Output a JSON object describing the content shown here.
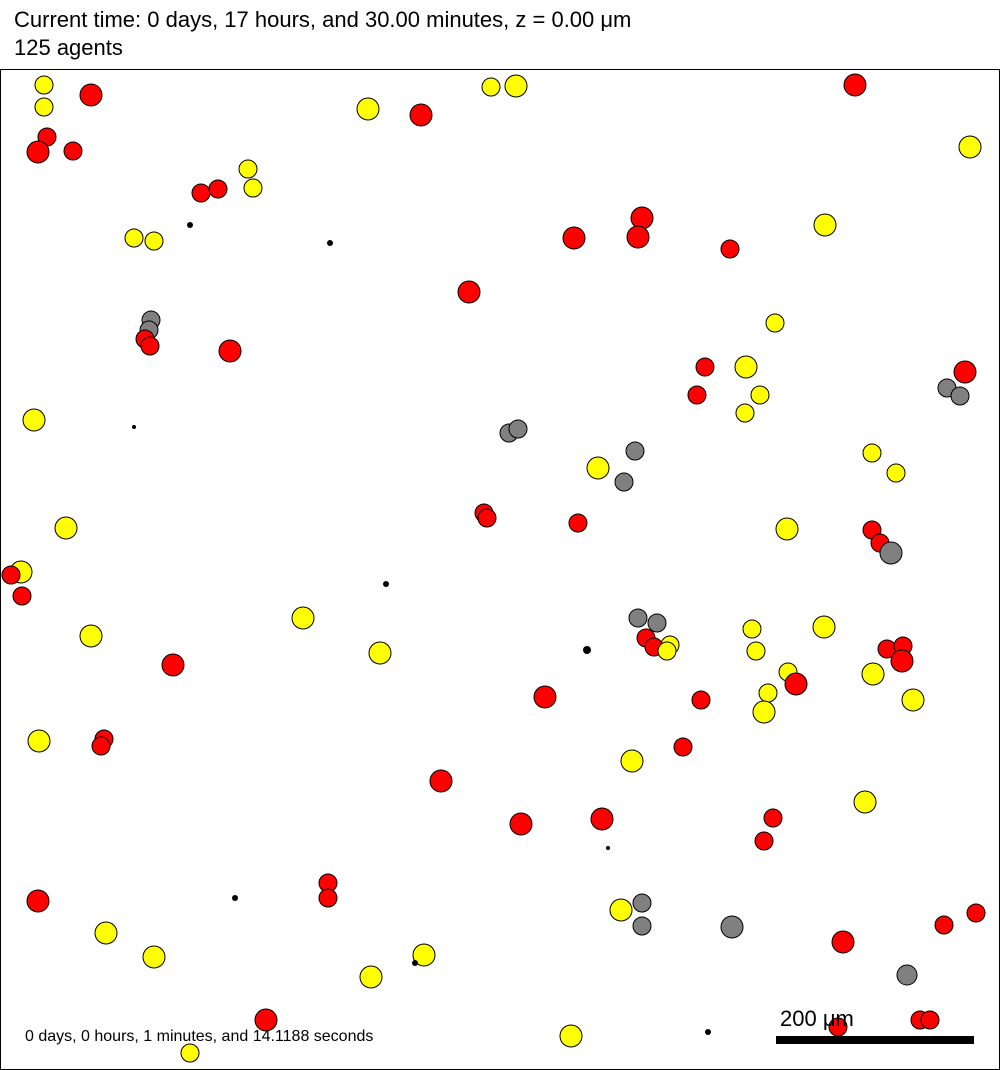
{
  "header": {
    "time_line": "Current time: 0 days, 17 hours, and 30.00 minutes, z = 0.00 μm",
    "agents_line": "125 agents"
  },
  "footer": {
    "elapsed": "0 days, 0 hours, 1 minutes, and 14.1188 seconds",
    "scale_label": "200 μm"
  },
  "colors": {
    "red": "#ff0000",
    "yellow": "#ffff00",
    "gray": "#808080",
    "black": "#000000",
    "outline": "#000000"
  }
}
